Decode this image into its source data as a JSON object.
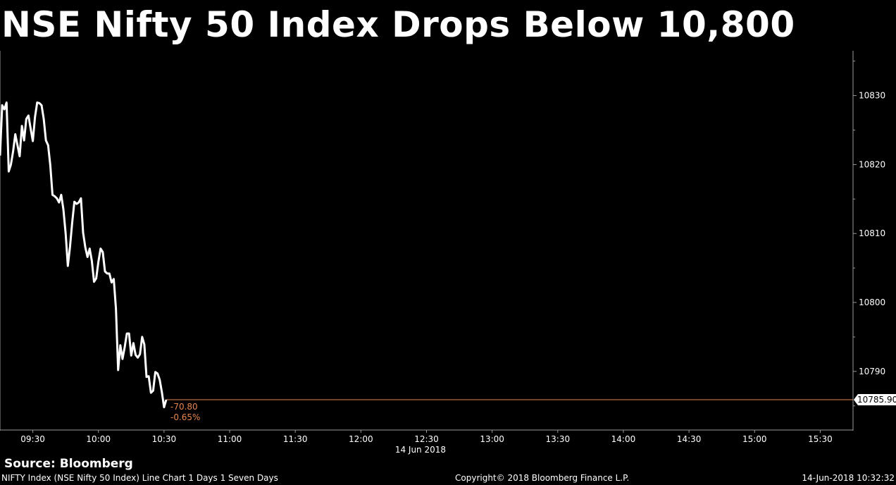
{
  "title": "NSE Nifty 50 Index Drops Below 10,800",
  "source": "Source: Bloomberg",
  "footer": {
    "left": "NIFTY Index (NSE Nifty 50 Index) Line Chart 1 Days 1 Seven Days",
    "middle": "Copyright© 2018 Bloomberg Finance L.P.",
    "right": "14-Jun-2018 10:32:32"
  },
  "colors": {
    "background": "#000000",
    "line": "#ffffff",
    "reference": "#e6864e"
  },
  "chart_data": {
    "type": "line",
    "title": "NSE Nifty 50 Index Drops Below 10,800",
    "date_label": "14 Jun 2018",
    "xlim": [
      "09:15",
      "15:45"
    ],
    "ylim": [
      10781.5,
      10836.5
    ],
    "y_axis_side": "right",
    "grid": false,
    "x_ticks": [
      "09:30",
      "10:00",
      "10:30",
      "11:00",
      "11:30",
      "12:00",
      "12:30",
      "13:00",
      "13:30",
      "14:00",
      "14:30",
      "15:00",
      "15:30"
    ],
    "y_ticks": [
      10830,
      10820,
      10810,
      10800,
      10790
    ],
    "last_value": 10785.9,
    "last_value_label": "10785.90",
    "change_label": "-70.80",
    "change_pct_label": "-0.65%",
    "series": [
      {
        "x": [
          "09:15",
          "09:16",
          "09:17",
          "09:18",
          "09:19",
          "09:20",
          "09:21",
          "09:22",
          "09:23",
          "09:24",
          "09:25",
          "09:26",
          "09:27",
          "09:28",
          "09:29",
          "09:30",
          "09:31",
          "09:32",
          "09:33",
          "09:34",
          "09:35",
          "09:36",
          "09:37",
          "09:38",
          "09:39",
          "09:40",
          "09:41",
          "09:42",
          "09:43",
          "09:44",
          "09:45",
          "09:46",
          "09:47",
          "09:48",
          "09:49",
          "09:50",
          "09:51",
          "09:52",
          "09:53",
          "09:54",
          "09:55",
          "09:56",
          "09:57",
          "09:58",
          "09:59",
          "10:00",
          "10:01",
          "10:02",
          "10:03",
          "10:04",
          "10:05",
          "10:06",
          "10:07",
          "10:08",
          "10:09",
          "10:10",
          "10:11",
          "10:12",
          "10:13",
          "10:14",
          "10:15",
          "10:16",
          "10:17",
          "10:18",
          "10:19",
          "10:20",
          "10:21",
          "10:22",
          "10:23",
          "10:24",
          "10:25",
          "10:26",
          "10:27",
          "10:28",
          "10:29",
          "10:30",
          "10:31"
        ],
        "values": [
          10821.3,
          10828.6,
          10828.0,
          10829.0,
          10819.0,
          10820.0,
          10821.9,
          10824.4,
          10822.8,
          10821.2,
          10825.6,
          10823.5,
          10826.6,
          10827.1,
          10825.2,
          10823.4,
          10826.9,
          10829.0,
          10828.9,
          10828.6,
          10826.6,
          10823.5,
          10822.8,
          10819.9,
          10815.6,
          10815.4,
          10815.1,
          10814.5,
          10815.6,
          10813.5,
          10810.0,
          10805.3,
          10808.1,
          10811.6,
          10814.6,
          10814.3,
          10814.5,
          10815.1,
          10810.1,
          10808.0,
          10806.6,
          10807.8,
          10806.0,
          10803.0,
          10803.5,
          10805.9,
          10807.8,
          10807.3,
          10804.5,
          10804.2,
          10804.2,
          10802.9,
          10803.4,
          10799.1,
          10790.2,
          10793.8,
          10791.8,
          10793.5,
          10795.5,
          10795.5,
          10792.3,
          10794.1,
          10792.4,
          10792.0,
          10792.5,
          10795.0,
          10793.9,
          10789.2,
          10789.3,
          10786.9,
          10787.2,
          10789.9,
          10789.7,
          10788.8,
          10787.0,
          10784.8,
          10785.9
        ]
      }
    ]
  }
}
